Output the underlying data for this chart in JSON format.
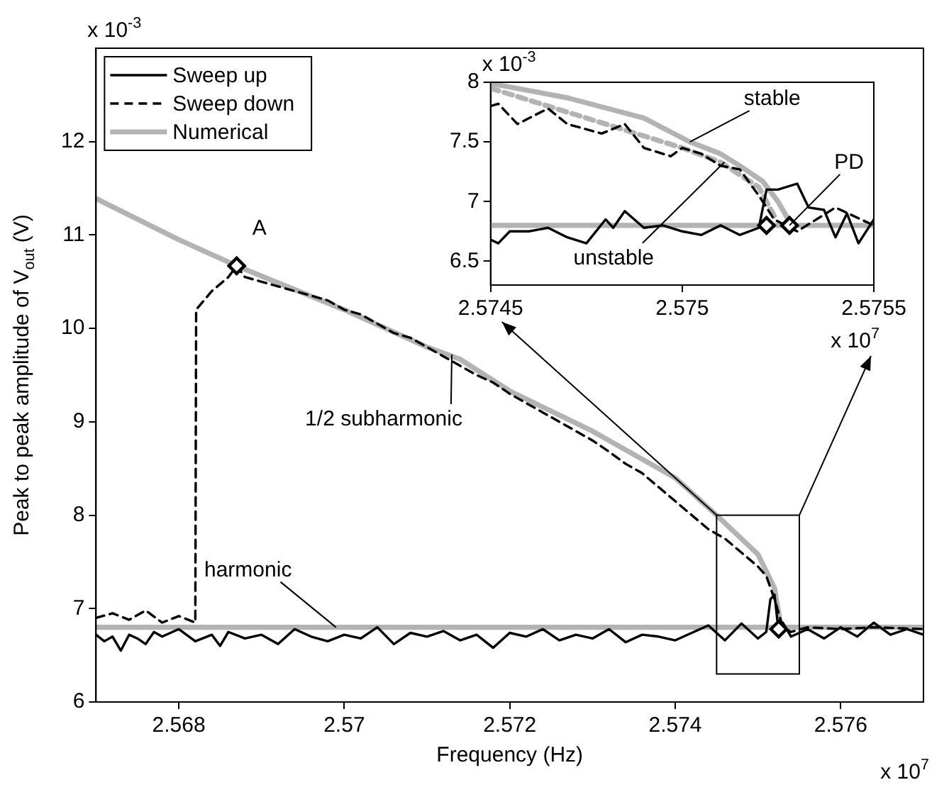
{
  "chart_data": [
    {
      "type": "line",
      "xlabel": "Frequency (Hz)",
      "ylabel": "Peak to peak amplitude of V$_{out}$ (V)",
      "xlim": [
        2.567,
        2.577
      ],
      "xticks": [
        2.568,
        2.57,
        2.572,
        2.574,
        2.576
      ],
      "ylim": [
        6,
        13
      ],
      "yticks": [
        6,
        7,
        8,
        9,
        10,
        11,
        12
      ],
      "grid": false,
      "legend": "top left",
      "marker": "none",
      "series": [
        {
          "name": "Sweep up",
          "color": "#000000",
          "line_style": "solid",
          "x": [
            2.567,
            2.5671,
            2.5672,
            2.5673,
            2.5674,
            2.5675,
            2.5676,
            2.5677,
            2.5678,
            2.568,
            2.5682,
            2.5684,
            2.5685,
            2.5686,
            2.5688,
            2.569,
            2.5692,
            2.5694,
            2.5696,
            2.5698,
            2.57,
            2.5702,
            2.5704,
            2.5706,
            2.5708,
            2.571,
            2.5712,
            2.5714,
            2.5716,
            2.5718,
            2.572,
            2.5722,
            2.5724,
            2.5726,
            2.5728,
            2.573,
            2.5732,
            2.5734,
            2.5736,
            2.5738,
            2.574,
            2.5742,
            2.5744,
            2.5746,
            2.5748,
            2.575,
            2.5751,
            2.57515,
            2.5752,
            2.57525,
            2.5753,
            2.5754,
            2.5756,
            2.5758,
            2.576,
            2.5762,
            2.5764,
            2.5766,
            2.5768,
            2.577
          ],
          "values": [
            6.72,
            6.65,
            6.7,
            6.55,
            6.72,
            6.68,
            6.62,
            6.75,
            6.7,
            6.78,
            6.65,
            6.72,
            6.6,
            6.75,
            6.68,
            6.72,
            6.62,
            6.78,
            6.7,
            6.65,
            6.72,
            6.68,
            6.8,
            6.62,
            6.74,
            6.7,
            6.76,
            6.66,
            6.72,
            6.58,
            6.74,
            6.7,
            6.78,
            6.66,
            6.72,
            6.68,
            6.78,
            6.64,
            6.72,
            6.7,
            6.66,
            6.74,
            6.82,
            6.66,
            6.84,
            6.68,
            6.75,
            7.1,
            7.15,
            6.75,
            6.85,
            6.7,
            6.78,
            6.68,
            6.8,
            6.7,
            6.85,
            6.72,
            6.78,
            6.72
          ]
        },
        {
          "name": "Sweep down",
          "color": "#000000",
          "line_style": "dashed",
          "x": [
            2.567,
            2.5672,
            2.5674,
            2.5676,
            2.5678,
            2.568,
            2.5682,
            2.56821,
            2.5684,
            2.5686,
            2.5687,
            2.5688,
            2.569,
            2.5692,
            2.5694,
            2.5696,
            2.5698,
            2.57,
            2.5702,
            2.5704,
            2.5706,
            2.5708,
            2.571,
            2.5712,
            2.5714,
            2.5716,
            2.5718,
            2.572,
            2.5722,
            2.5724,
            2.5726,
            2.5728,
            2.573,
            2.5732,
            2.5734,
            2.5736,
            2.5738,
            2.574,
            2.5742,
            2.5744,
            2.5746,
            2.5748,
            2.575,
            2.5751,
            2.5752,
            2.5753,
            2.5754,
            2.5756,
            2.576,
            2.5764,
            2.577
          ],
          "values": [
            6.9,
            6.95,
            6.88,
            6.98,
            6.85,
            6.92,
            6.85,
            10.2,
            10.4,
            10.55,
            10.67,
            10.55,
            10.5,
            10.45,
            10.4,
            10.35,
            10.3,
            10.2,
            10.15,
            10.05,
            9.95,
            9.9,
            9.8,
            9.7,
            9.6,
            9.5,
            9.42,
            9.3,
            9.2,
            9.1,
            9.0,
            8.9,
            8.8,
            8.68,
            8.55,
            8.45,
            8.3,
            8.15,
            8.0,
            7.85,
            7.75,
            7.6,
            7.45,
            7.35,
            7.1,
            6.8,
            6.75,
            6.8,
            6.78,
            6.8,
            6.78
          ]
        },
        {
          "name": "Numerical",
          "color": "#b3b3b3",
          "line_style": "solid",
          "x": [
            2.567,
            2.568,
            2.5687,
            2.569,
            2.57,
            2.571,
            2.5714,
            2.572,
            2.573,
            2.574,
            2.5745,
            2.575,
            2.5752,
            2.57525,
            2.57528
          ],
          "values": [
            11.39,
            10.95,
            10.67,
            10.56,
            10.2,
            9.8,
            9.67,
            9.33,
            8.9,
            8.4,
            8.0,
            7.58,
            7.22,
            6.95,
            6.8
          ]
        },
        {
          "color": "#b3b3b3",
          "line_style": "solid",
          "x": [
            2.567,
            2.577
          ],
          "values": [
            6.8,
            6.8
          ]
        },
        {
          "type": "scatter",
          "color": "#000000",
          "marker": "diamond",
          "x": [
            2.5687,
            2.57525
          ],
          "values": [
            10.67,
            6.78
          ]
        }
      ],
      "annotations": [
        {
          "text": "A",
          "x": 2.5687,
          "y": 10.67
        },
        {
          "text": "1/2 subharmonic",
          "x": 2.5713,
          "y": 9.72
        },
        {
          "text": "harmonic",
          "x": 2.5699,
          "y": 6.8
        },
        "x 10$^{-3}$",
        "x 10$^{7}$"
      ]
    },
    {
      "type": "line",
      "xlim": [
        2.5745,
        2.5755
      ],
      "xticks": [
        2.5745,
        2.575,
        2.5755
      ],
      "ylim": [
        6.3,
        8
      ],
      "yticks": [
        6.5,
        7,
        7.5,
        8
      ],
      "grid": false,
      "legend": false,
      "marker": "none",
      "series": [
        {
          "color": "#000000",
          "line_style": "solid",
          "x": [
            2.5745,
            2.57452,
            2.57455,
            2.5746,
            2.57465,
            2.5747,
            2.57475,
            2.5748,
            2.57482,
            2.57485,
            2.5749,
            2.57495,
            2.575,
            2.57505,
            2.5751,
            2.57515,
            2.5752,
            2.57522,
            2.57525,
            2.5753,
            2.57533,
            2.57537,
            2.5754,
            2.57543,
            2.57546,
            2.57549,
            2.5755
          ],
          "values": [
            6.68,
            6.65,
            6.75,
            6.75,
            6.78,
            6.7,
            6.65,
            6.85,
            6.78,
            6.92,
            6.78,
            6.8,
            6.75,
            6.72,
            6.8,
            6.72,
            6.78,
            7.1,
            7.1,
            7.15,
            6.95,
            6.93,
            6.7,
            6.9,
            6.65,
            6.8,
            6.85
          ]
        },
        {
          "color": "#000000",
          "line_style": "dashed",
          "x": [
            2.5745,
            2.57452,
            2.57457,
            2.57465,
            2.5747,
            2.57479,
            2.57485,
            2.5749,
            2.57497,
            2.575,
            2.57505,
            2.5751,
            2.57515,
            2.5752,
            2.57524,
            2.5753,
            2.5754,
            2.5755
          ],
          "values": [
            7.8,
            7.82,
            7.65,
            7.78,
            7.65,
            7.57,
            7.65,
            7.45,
            7.38,
            7.45,
            7.4,
            7.3,
            7.27,
            7.05,
            6.85,
            6.75,
            6.95,
            6.8
          ]
        },
        {
          "color": "#b3b3b3",
          "line_style": "solid",
          "x": [
            2.5745,
            2.5747,
            2.5749,
            2.57502,
            2.5751,
            2.57515,
            2.57521,
            2.57525,
            2.57528
          ],
          "values": [
            7.99,
            7.87,
            7.7,
            7.5,
            7.4,
            7.3,
            7.17,
            7.0,
            6.83
          ]
        },
        {
          "color": "#b3b3b3",
          "line_style": "dashed",
          "x": [
            2.5745,
            2.575,
            2.5751,
            2.5752,
            2.57524
          ],
          "values": [
            7.95,
            7.45,
            7.33,
            7.12,
            6.88
          ]
        },
        {
          "color": "#b3b3b3",
          "line_style": "solid",
          "x": [
            2.5745,
            2.5755
          ],
          "values": [
            6.8,
            6.8
          ]
        },
        {
          "type": "scatter",
          "color": "#000000",
          "marker": "diamond",
          "x": [
            2.57522,
            2.57528
          ],
          "values": [
            6.8,
            6.8
          ]
        }
      ],
      "annotations": [
        {
          "text": "stable",
          "x": 2.57502,
          "y": 7.5
        },
        {
          "text": "unstable",
          "x": 2.57511,
          "y": 7.33
        },
        {
          "text": "PD",
          "x": 2.57528,
          "y": 6.8
        },
        "x 10$^{-3}$",
        "x 10$^{7}$"
      ]
    }
  ]
}
